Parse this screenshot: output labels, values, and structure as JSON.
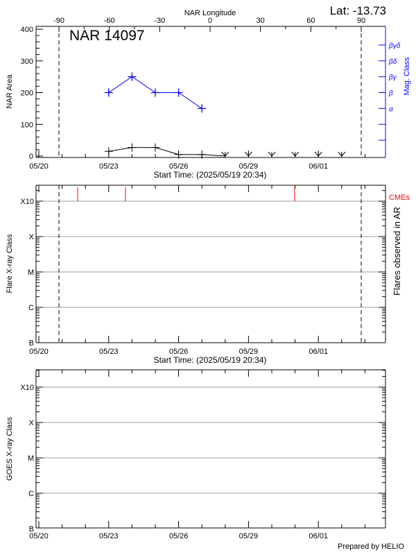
{
  "header": {
    "lat_label": "Lat: -13.73",
    "region_title": "NAR 14097"
  },
  "footer": {
    "credit": "Prepared by HELIO"
  },
  "colors": {
    "area": "#000000",
    "mag_class": "#0000ff",
    "cme": "#ff0000",
    "grid": "#999999"
  },
  "chart_data": [
    {
      "type": "line",
      "title": "NAR 14097",
      "xlabel": "Start Time: (2025/05/19 20:34)",
      "x_tick_labels": [
        "05/20",
        "05/23",
        "05/26",
        "05/29",
        "06/01"
      ],
      "x_range": [
        "2025-05-19T20:34",
        "2025-06-03T20:34"
      ],
      "top_axis": {
        "label": "NAR Longitude",
        "ticks": [
          -90,
          -60,
          -30,
          0,
          30,
          60,
          90
        ],
        "tick_labels": [
          "-90",
          "-60",
          "-30",
          "0",
          "30",
          "60",
          "90"
        ]
      },
      "limb_longitudes": [
        -90,
        90
      ],
      "ylabel": "NAR Area",
      "ylim": [
        0,
        400
      ],
      "y_ticks": [
        0,
        100,
        200,
        300,
        400
      ],
      "y_tick_labels": [
        "0",
        "100",
        "200",
        "300",
        "400"
      ],
      "right_axis": {
        "label": "Mag. Class",
        "classes": [
          {
            "label": "α",
            "value": 150
          },
          {
            "label": "β",
            "value": 200
          },
          {
            "label": "βγ",
            "value": 250
          },
          {
            "label": "βδ",
            "value": 300
          },
          {
            "label": "βγδ",
            "value": 350
          }
        ]
      },
      "series": [
        {
          "key": "area",
          "x": [
            "2025-05-23",
            "2025-05-24",
            "2025-05-25",
            "2025-05-26",
            "2025-05-27",
            "2025-05-28"
          ],
          "values": [
            15,
            27,
            27,
            5,
            5,
            0
          ]
        },
        {
          "key": "area_zero",
          "x": [
            "2025-05-28",
            "2025-05-29",
            "2025-05-30",
            "2025-05-31",
            "2025-06-01",
            "2025-06-02"
          ],
          "values": [
            0,
            0,
            0,
            0,
            0,
            0
          ]
        },
        {
          "key": "mag_class",
          "x": [
            "2025-05-23",
            "2025-05-24",
            "2025-05-25",
            "2025-05-26",
            "2025-05-27"
          ],
          "values": [
            "β",
            "βγ",
            "β",
            "β",
            "α"
          ]
        }
      ]
    },
    {
      "type": "scatter",
      "xlabel": "Start Time: (2025/05/19 20:34)",
      "x_tick_labels": [
        "05/20",
        "05/23",
        "05/26",
        "05/29",
        "06/01"
      ],
      "ylabel": "Flare X-ray Class",
      "right_label": "Flares observed in AR",
      "y_classes": [
        "B",
        "C",
        "M",
        "X",
        "X10"
      ],
      "grid": true,
      "limb_longitudes": [
        -90,
        90
      ],
      "cme_label": "CMEs",
      "cmes": [
        "2025-05-21T16:00",
        "2025-05-23T17:15",
        "2025-05-30T23:30"
      ],
      "flares": []
    },
    {
      "type": "line",
      "x_tick_labels": [
        "05/20",
        "05/23",
        "05/26",
        "05/29",
        "06/01"
      ],
      "ylabel": "GOES X-ray Class",
      "y_classes": [
        "B",
        "C",
        "M",
        "X",
        "X10"
      ],
      "grid": true,
      "series": []
    }
  ]
}
